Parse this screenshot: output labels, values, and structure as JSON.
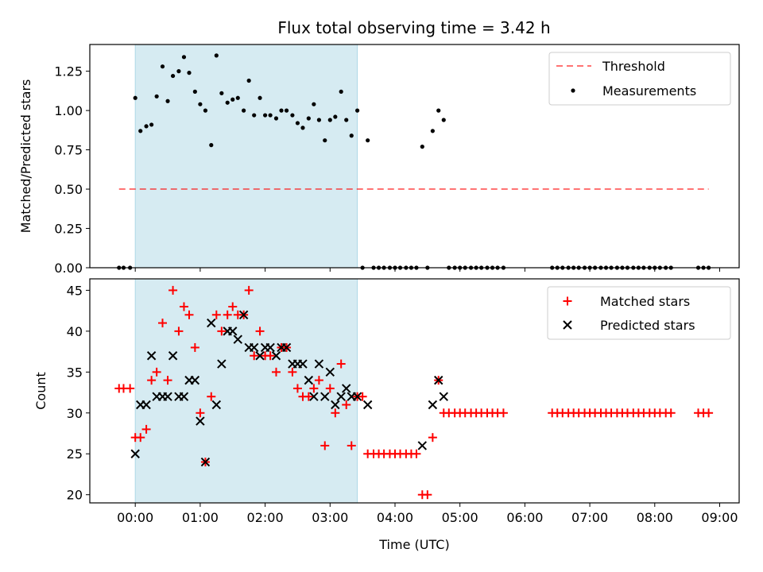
{
  "title": "Flux total observing time = 3.42 h",
  "colors": {
    "shade": "#add8e6",
    "threshold": "#ff0000",
    "measurement": "#000000",
    "matched": "#ff0000",
    "predicted": "#000000"
  },
  "chart_data": [
    {
      "type": "scatter",
      "ylabel": "Matched/Predicted stars",
      "xlim": [
        -0.7,
        9.3
      ],
      "ylim": [
        0,
        1.42
      ],
      "yticks": [
        0.0,
        0.25,
        0.5,
        0.75,
        1.0,
        1.25
      ],
      "ytick_labels": [
        "0.00",
        "0.25",
        "0.50",
        "0.75",
        "1.00",
        "1.25"
      ],
      "shaded_span": [
        0.0,
        3.42
      ],
      "threshold": {
        "name": "Threshold",
        "y": 0.5,
        "x": [
          -0.25,
          8.83
        ]
      },
      "legend": [
        "Threshold",
        "Measurements"
      ],
      "legend_position": "top-right",
      "series": [
        {
          "name": "Measurements",
          "points": [
            [
              -0.25,
              0
            ],
            [
              -0.18,
              0
            ],
            [
              -0.08,
              0
            ],
            [
              0.0,
              1.08
            ],
            [
              0.08,
              0.87
            ],
            [
              0.17,
              0.9
            ],
            [
              0.25,
              0.91
            ],
            [
              0.33,
              1.09
            ],
            [
              0.42,
              1.28
            ],
            [
              0.5,
              1.06
            ],
            [
              0.58,
              1.22
            ],
            [
              0.67,
              1.25
            ],
            [
              0.75,
              1.34
            ],
            [
              0.83,
              1.24
            ],
            [
              0.92,
              1.12
            ],
            [
              1.0,
              1.04
            ],
            [
              1.08,
              1.0
            ],
            [
              1.17,
              0.78
            ],
            [
              1.25,
              1.35
            ],
            [
              1.33,
              1.11
            ],
            [
              1.42,
              1.05
            ],
            [
              1.5,
              1.07
            ],
            [
              1.58,
              1.08
            ],
            [
              1.67,
              1.0
            ],
            [
              1.75,
              1.19
            ],
            [
              1.83,
              0.97
            ],
            [
              1.92,
              1.08
            ],
            [
              2.0,
              0.97
            ],
            [
              2.08,
              0.97
            ],
            [
              2.17,
              0.95
            ],
            [
              2.25,
              1.0
            ],
            [
              2.33,
              1.0
            ],
            [
              2.42,
              0.97
            ],
            [
              2.5,
              0.92
            ],
            [
              2.58,
              0.89
            ],
            [
              2.67,
              0.95
            ],
            [
              2.75,
              1.04
            ],
            [
              2.83,
              0.94
            ],
            [
              2.92,
              0.81
            ],
            [
              3.0,
              0.94
            ],
            [
              3.08,
              0.96
            ],
            [
              3.17,
              1.12
            ],
            [
              3.25,
              0.94
            ],
            [
              3.33,
              0.84
            ],
            [
              3.42,
              1.0
            ],
            [
              3.5,
              0
            ],
            [
              3.58,
              0.81
            ],
            [
              3.67,
              0
            ],
            [
              3.75,
              0
            ],
            [
              3.83,
              0
            ],
            [
              3.92,
              0
            ],
            [
              4.0,
              0
            ],
            [
              4.08,
              0
            ],
            [
              4.17,
              0
            ],
            [
              4.25,
              0
            ],
            [
              4.33,
              0
            ],
            [
              4.42,
              0.77
            ],
            [
              4.5,
              0
            ],
            [
              4.58,
              0.87
            ],
            [
              4.67,
              1.0
            ],
            [
              4.75,
              0.94
            ],
            [
              4.83,
              0
            ],
            [
              4.92,
              0
            ],
            [
              5.0,
              0
            ],
            [
              5.08,
              0
            ],
            [
              5.17,
              0
            ],
            [
              5.25,
              0
            ],
            [
              5.33,
              0
            ],
            [
              5.42,
              0
            ],
            [
              5.5,
              0
            ],
            [
              5.58,
              0
            ],
            [
              5.67,
              0
            ],
            [
              6.42,
              0
            ],
            [
              6.5,
              0
            ],
            [
              6.58,
              0
            ],
            [
              6.67,
              0
            ],
            [
              6.75,
              0
            ],
            [
              6.83,
              0
            ],
            [
              6.92,
              0
            ],
            [
              7.0,
              0
            ],
            [
              7.08,
              0
            ],
            [
              7.17,
              0
            ],
            [
              7.25,
              0
            ],
            [
              7.33,
              0
            ],
            [
              7.42,
              0
            ],
            [
              7.5,
              0
            ],
            [
              7.58,
              0
            ],
            [
              7.67,
              0
            ],
            [
              7.75,
              0
            ],
            [
              7.83,
              0
            ],
            [
              7.92,
              0
            ],
            [
              8.0,
              0
            ],
            [
              8.08,
              0
            ],
            [
              8.17,
              0
            ],
            [
              8.25,
              0
            ],
            [
              8.67,
              0
            ],
            [
              8.75,
              0
            ],
            [
              8.83,
              0
            ]
          ]
        }
      ]
    },
    {
      "type": "scatter",
      "xlabel": "Time (UTC)",
      "ylabel": "Count",
      "xlim": [
        -0.7,
        9.3
      ],
      "ylim": [
        19,
        46.4
      ],
      "xticks": [
        0,
        1,
        2,
        3,
        4,
        5,
        6,
        7,
        8,
        9
      ],
      "xtick_labels": [
        "00:00",
        "01:00",
        "02:00",
        "03:00",
        "04:00",
        "05:00",
        "06:00",
        "07:00",
        "08:00",
        "09:00"
      ],
      "yticks": [
        20,
        25,
        30,
        35,
        40,
        45
      ],
      "ytick_labels": [
        "20",
        "25",
        "30",
        "35",
        "40",
        "45"
      ],
      "shaded_span": [
        0.0,
        3.42
      ],
      "legend": [
        "Matched stars",
        "Predicted stars"
      ],
      "legend_position": "top-right",
      "series": [
        {
          "name": "Matched stars",
          "marker": "+",
          "points": [
            [
              -0.25,
              33
            ],
            [
              -0.18,
              33
            ],
            [
              -0.08,
              33
            ],
            [
              0.0,
              27
            ],
            [
              0.08,
              27
            ],
            [
              0.17,
              28
            ],
            [
              0.25,
              34
            ],
            [
              0.33,
              35
            ],
            [
              0.42,
              41
            ],
            [
              0.5,
              34
            ],
            [
              0.58,
              45
            ],
            [
              0.67,
              40
            ],
            [
              0.75,
              43
            ],
            [
              0.83,
              42
            ],
            [
              0.92,
              38
            ],
            [
              1.0,
              30
            ],
            [
              1.08,
              24
            ],
            [
              1.17,
              32
            ],
            [
              1.25,
              42
            ],
            [
              1.33,
              40
            ],
            [
              1.42,
              42
            ],
            [
              1.5,
              43
            ],
            [
              1.58,
              42
            ],
            [
              1.67,
              42
            ],
            [
              1.75,
              45
            ],
            [
              1.83,
              37
            ],
            [
              1.92,
              40
            ],
            [
              2.0,
              37
            ],
            [
              2.08,
              37
            ],
            [
              2.17,
              35
            ],
            [
              2.25,
              38
            ],
            [
              2.33,
              38
            ],
            [
              2.42,
              35
            ],
            [
              2.5,
              33
            ],
            [
              2.58,
              32
            ],
            [
              2.67,
              32
            ],
            [
              2.75,
              33
            ],
            [
              2.83,
              34
            ],
            [
              2.92,
              26
            ],
            [
              3.0,
              33
            ],
            [
              3.08,
              30
            ],
            [
              3.17,
              36
            ],
            [
              3.25,
              31
            ],
            [
              3.33,
              26
            ],
            [
              3.42,
              32
            ],
            [
              3.5,
              32
            ],
            [
              3.58,
              25
            ],
            [
              3.67,
              25
            ],
            [
              3.75,
              25
            ],
            [
              3.83,
              25
            ],
            [
              3.92,
              25
            ],
            [
              4.0,
              25
            ],
            [
              4.08,
              25
            ],
            [
              4.17,
              25
            ],
            [
              4.25,
              25
            ],
            [
              4.33,
              25
            ],
            [
              4.42,
              20
            ],
            [
              4.5,
              20
            ],
            [
              4.58,
              27
            ],
            [
              4.67,
              34
            ],
            [
              4.75,
              30
            ],
            [
              4.83,
              30
            ],
            [
              4.92,
              30
            ],
            [
              5.0,
              30
            ],
            [
              5.08,
              30
            ],
            [
              5.17,
              30
            ],
            [
              5.25,
              30
            ],
            [
              5.33,
              30
            ],
            [
              5.42,
              30
            ],
            [
              5.5,
              30
            ],
            [
              5.58,
              30
            ],
            [
              5.67,
              30
            ],
            [
              6.42,
              30
            ],
            [
              6.5,
              30
            ],
            [
              6.58,
              30
            ],
            [
              6.67,
              30
            ],
            [
              6.75,
              30
            ],
            [
              6.83,
              30
            ],
            [
              6.92,
              30
            ],
            [
              7.0,
              30
            ],
            [
              7.08,
              30
            ],
            [
              7.17,
              30
            ],
            [
              7.25,
              30
            ],
            [
              7.33,
              30
            ],
            [
              7.42,
              30
            ],
            [
              7.5,
              30
            ],
            [
              7.58,
              30
            ],
            [
              7.67,
              30
            ],
            [
              7.75,
              30
            ],
            [
              7.83,
              30
            ],
            [
              7.92,
              30
            ],
            [
              8.0,
              30
            ],
            [
              8.08,
              30
            ],
            [
              8.17,
              30
            ],
            [
              8.25,
              30
            ],
            [
              8.67,
              30
            ],
            [
              8.75,
              30
            ],
            [
              8.83,
              30
            ]
          ]
        },
        {
          "name": "Predicted stars",
          "marker": "x",
          "points": [
            [
              0.0,
              25
            ],
            [
              0.08,
              31
            ],
            [
              0.17,
              31
            ],
            [
              0.25,
              37
            ],
            [
              0.33,
              32
            ],
            [
              0.42,
              32
            ],
            [
              0.5,
              32
            ],
            [
              0.58,
              37
            ],
            [
              0.67,
              32
            ],
            [
              0.75,
              32
            ],
            [
              0.83,
              34
            ],
            [
              0.92,
              34
            ],
            [
              1.0,
              29
            ],
            [
              1.08,
              24
            ],
            [
              1.17,
              41
            ],
            [
              1.25,
              31
            ],
            [
              1.33,
              36
            ],
            [
              1.42,
              40
            ],
            [
              1.5,
              40
            ],
            [
              1.58,
              39
            ],
            [
              1.67,
              42
            ],
            [
              1.75,
              38
            ],
            [
              1.83,
              38
            ],
            [
              1.92,
              37
            ],
            [
              2.0,
              38
            ],
            [
              2.08,
              38
            ],
            [
              2.17,
              37
            ],
            [
              2.25,
              38
            ],
            [
              2.33,
              38
            ],
            [
              2.42,
              36
            ],
            [
              2.5,
              36
            ],
            [
              2.58,
              36
            ],
            [
              2.67,
              34
            ],
            [
              2.75,
              32
            ],
            [
              2.83,
              36
            ],
            [
              2.92,
              32
            ],
            [
              3.0,
              35
            ],
            [
              3.08,
              31
            ],
            [
              3.17,
              32
            ],
            [
              3.25,
              33
            ],
            [
              3.33,
              32
            ],
            [
              3.42,
              32
            ],
            [
              3.58,
              31
            ],
            [
              4.42,
              26
            ],
            [
              4.58,
              31
            ],
            [
              4.67,
              34
            ],
            [
              4.75,
              32
            ]
          ]
        }
      ]
    }
  ]
}
